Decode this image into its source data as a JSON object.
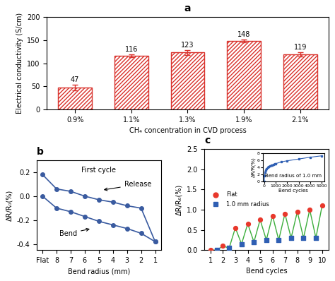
{
  "chart_data": [
    {
      "type": "bar",
      "title": "a",
      "categories": [
        "0.9%",
        "1.1%",
        "1.3%",
        "1.9%",
        "2.1%"
      ],
      "values": [
        47,
        116,
        123,
        148,
        119
      ],
      "error": [
        6,
        3,
        6,
        3,
        5
      ],
      "color": "#d9312b",
      "x_label": "CH₄ concentration in CVD process",
      "y_label": "Electrical conductivity (S/cm)",
      "ylim": [
        0,
        200
      ],
      "yticks": [
        0,
        50,
        100,
        150,
        200
      ],
      "data_labels": true
    },
    {
      "type": "line",
      "title": "b",
      "categories": [
        "Flat",
        "8",
        "7",
        "6",
        "5",
        "4",
        "3",
        "2",
        "1"
      ],
      "series": [
        {
          "name": "Bend",
          "color": "#3a5ba0",
          "marker": "o",
          "values": [
            0.0,
            -0.1,
            -0.13,
            -0.17,
            -0.21,
            -0.24,
            -0.27,
            -0.31,
            -0.38
          ]
        },
        {
          "name": "Release",
          "color": "#3a5ba0",
          "marker": "o",
          "values": [
            0.18,
            0.06,
            0.04,
            0.0,
            -0.03,
            -0.05,
            -0.08,
            -0.1,
            -0.38
          ]
        }
      ],
      "annotations": [
        "First cycle",
        "Bend",
        "Release"
      ],
      "x_label": "Bend radius (mm)",
      "y_label": "ΔR/R₀(%)",
      "ylim": [
        -0.45,
        0.3
      ],
      "yticks": [
        -0.4,
        -0.2,
        0.0,
        0.2
      ]
    },
    {
      "type": "scatter",
      "title": "c",
      "x": [
        1,
        1.5,
        2,
        2.5,
        3,
        3.5,
        4,
        4.5,
        5,
        5.5,
        6,
        6.5,
        7,
        7.5,
        8,
        8.5,
        9,
        9.5,
        10
      ],
      "series": [
        {
          "name": "Flat",
          "color": "#e8382c",
          "marker": "o",
          "values": [
            0.0,
            null,
            0.1,
            null,
            0.55,
            null,
            0.65,
            null,
            0.75,
            null,
            0.85,
            null,
            0.9,
            null,
            0.95,
            null,
            1.0,
            null,
            1.1
          ]
        },
        {
          "name": "1.0 mm radius",
          "color": "#2f5fb3",
          "marker": "s",
          "values": [
            null,
            0.0,
            null,
            0.05,
            null,
            0.15,
            null,
            0.2,
            null,
            0.25,
            null,
            0.25,
            null,
            0.3,
            null,
            0.3,
            null,
            0.3,
            null
          ]
        }
      ],
      "x_label": "Bend cycles",
      "y_label": "ΔR/R₀(%)",
      "xlim": [
        0.5,
        10.5
      ],
      "xticks": [
        1,
        2,
        3,
        4,
        5,
        6,
        7,
        8,
        9,
        10
      ],
      "ylim": [
        0,
        2.5
      ],
      "yticks": [
        0.0,
        0.5,
        1.0,
        1.5,
        2.0,
        2.5
      ],
      "legend": "center left"
    },
    {
      "type": "line",
      "x": [
        0,
        10,
        50,
        100,
        200,
        300,
        400,
        500,
        600,
        700,
        800,
        900,
        1000,
        1500,
        2000,
        3000,
        4000,
        5000
      ],
      "series": [
        {
          "name": "Bend radius of 1.0 mm",
          "color": "#2f5fb3",
          "marker": "s",
          "values": [
            0,
            1.5,
            2.5,
            3.2,
            3.6,
            3.9,
            4.1,
            4.3,
            4.5,
            4.6,
            4.8,
            4.9,
            5.0,
            5.5,
            5.8,
            6.3,
            6.8,
            7.2
          ]
        }
      ],
      "x_label": "Bend cycles",
      "y_label": "ΔR/R(%)",
      "xlim": [
        -150,
        5250
      ],
      "xticks": [
        0,
        1000,
        2000,
        3000,
        4000,
        5000
      ],
      "ylim": [
        0,
        8
      ],
      "yticks": [
        0,
        2,
        4,
        6,
        8
      ]
    }
  ]
}
